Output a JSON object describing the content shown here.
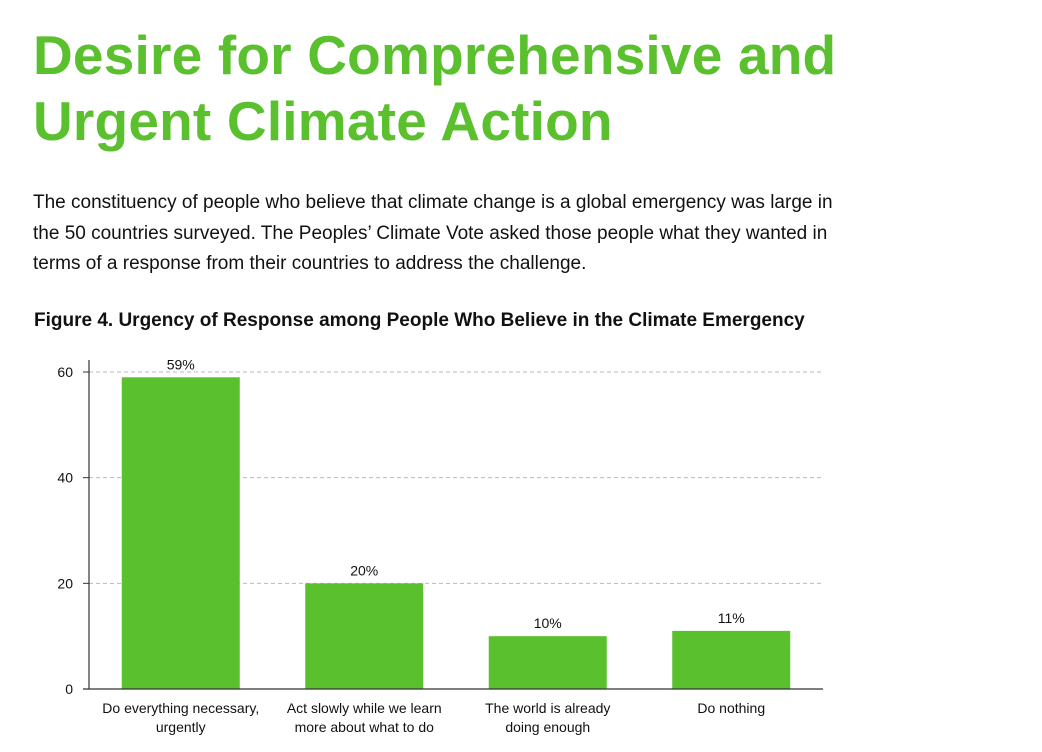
{
  "page": {
    "title_lines": [
      "Desire for Comprehensive and",
      "Urgent Climate Action"
    ],
    "intro_lines": [
      "The constituency of people who believe that climate change is a global emergency was large in",
      "the 50 countries surveyed. The Peoples’ Climate Vote asked those people what they wanted in",
      "terms of a response from their countries to address the challenge."
    ],
    "figure_title": "Figure 4. Urgency of Response among People Who Believe in the Climate Emergency"
  },
  "colors": {
    "title": "#5ac02e",
    "bar": "#5ac02e",
    "text": "#111111",
    "grid": "#b9b9b9",
    "axis": "#333333"
  },
  "chart_data": {
    "type": "bar",
    "title": "Figure 4. Urgency of Response among People Who Believe in the Climate Emergency",
    "categories": [
      [
        "Do everything necessary,",
        "urgently"
      ],
      [
        "Act slowly while we learn",
        "more about what to do"
      ],
      [
        "The world is already",
        "doing enough"
      ],
      [
        "Do nothing"
      ]
    ],
    "values": [
      59,
      20,
      10,
      11
    ],
    "value_labels": [
      "59%",
      "20%",
      "10%",
      "11%"
    ],
    "y_ticks": [
      0,
      20,
      40,
      60
    ],
    "ylim": [
      0,
      60
    ],
    "grid": true,
    "grid_style": "dashed",
    "xlabel": "",
    "ylabel": ""
  }
}
